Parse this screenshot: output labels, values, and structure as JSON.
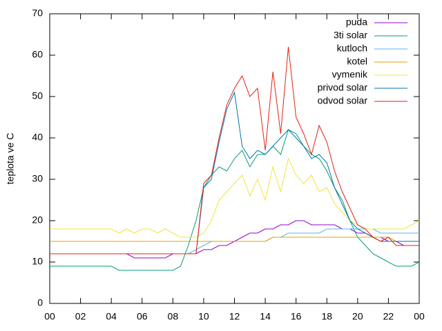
{
  "chart_data": {
    "type": "line",
    "ylabel": "teplota ve C",
    "x": [
      0,
      0.5,
      1,
      1.5,
      2,
      2.5,
      3,
      3.5,
      4,
      4.5,
      5,
      5.5,
      6,
      6.5,
      7,
      7.5,
      8,
      8.5,
      9,
      9.5,
      10,
      10.5,
      11,
      11.5,
      12,
      12.5,
      13,
      13.5,
      14,
      14.5,
      15,
      15.5,
      16,
      16.5,
      17,
      17.5,
      18,
      18.5,
      19,
      19.5,
      20,
      20.5,
      21,
      21.5,
      22,
      22.5,
      23,
      23.5,
      24
    ],
    "xlim": [
      0,
      24
    ],
    "xticks": [
      {
        "value": 0,
        "label": "00"
      },
      {
        "value": 2,
        "label": "02"
      },
      {
        "value": 4,
        "label": "04"
      },
      {
        "value": 6,
        "label": "06"
      },
      {
        "value": 8,
        "label": "08"
      },
      10,
      12,
      14,
      16,
      18,
      20,
      22,
      {
        "value": 24,
        "label": "00"
      }
    ],
    "ylim": [
      0,
      70
    ],
    "yticks": [
      0,
      10,
      20,
      30,
      40,
      50,
      60,
      70
    ],
    "legend": "upper right",
    "series": [
      {
        "name": "puda",
        "color": "#9400d3",
        "values": [
          12,
          12,
          12,
          12,
          12,
          12,
          12,
          12,
          12,
          12,
          12,
          11,
          11,
          11,
          11,
          11,
          12,
          12,
          12,
          12,
          13,
          13,
          14,
          14,
          15,
          16,
          17,
          17,
          18,
          18,
          19,
          19,
          20,
          20,
          19,
          19,
          19,
          19,
          18,
          18,
          17,
          17,
          16,
          16,
          15,
          15,
          14,
          14,
          14
        ]
      },
      {
        "name": "3ti solar",
        "color": "#009e73",
        "values": [
          9,
          9,
          9,
          9,
          9,
          9,
          9,
          9,
          9,
          8,
          8,
          8,
          8,
          8,
          8,
          8,
          8,
          9,
          14,
          20,
          28,
          31,
          33,
          32,
          35,
          37,
          33,
          36,
          36,
          38,
          36,
          42,
          41,
          38,
          36,
          35,
          32,
          28,
          25,
          20,
          16,
          14,
          12,
          11,
          10,
          9,
          9,
          9,
          10
        ]
      },
      {
        "name": "kutloch",
        "color": "#56b4e9",
        "values": [
          12,
          12,
          12,
          12,
          12,
          12,
          12,
          12,
          12,
          12,
          12,
          12,
          12,
          12,
          12,
          12,
          12,
          12,
          12,
          13,
          14,
          15,
          15,
          15,
          15,
          15,
          15,
          15,
          15,
          16,
          16,
          17,
          17,
          17,
          17,
          17,
          18,
          18,
          18,
          18,
          18,
          18,
          18,
          17,
          17,
          17,
          17,
          17,
          17
        ]
      },
      {
        "name": "kotel",
        "color": "#e69f00",
        "values": [
          15,
          15,
          15,
          15,
          15,
          15,
          15,
          15,
          15,
          15,
          15,
          15,
          15,
          15,
          15,
          15,
          15,
          15,
          15,
          15,
          15,
          15,
          15,
          15,
          15,
          15,
          15,
          15,
          15,
          16,
          16,
          16,
          16,
          16,
          16,
          16,
          16,
          16,
          16,
          16,
          16,
          16,
          16,
          16,
          16,
          15,
          15,
          15,
          15
        ]
      },
      {
        "name": "vymenik",
        "color": "#f0e442",
        "values": [
          18,
          18,
          18,
          18,
          18,
          18,
          18,
          18,
          18,
          17,
          18,
          17,
          18,
          18,
          17,
          18,
          17,
          16,
          16,
          16,
          17,
          20,
          25,
          27,
          29,
          31,
          26,
          30,
          25,
          33,
          27,
          35,
          31,
          29,
          31,
          27,
          28,
          24,
          22,
          20,
          19,
          18,
          18,
          18,
          18,
          18,
          18,
          19,
          20
        ]
      },
      {
        "name": "privod solar",
        "color": "#0072b2",
        "values": [
          12,
          12,
          12,
          12,
          12,
          12,
          12,
          12,
          12,
          12,
          12,
          12,
          12,
          12,
          12,
          12,
          12,
          12,
          12,
          12,
          28,
          30,
          39,
          47,
          51,
          38,
          35,
          37,
          36,
          38,
          40,
          42,
          40,
          38,
          35,
          36,
          34,
          28,
          24,
          20,
          18,
          17,
          16,
          15,
          15,
          15,
          15,
          15,
          15
        ]
      },
      {
        "name": "odvod solar",
        "color": "#e51e10",
        "values": [
          12,
          12,
          12,
          12,
          12,
          12,
          12,
          12,
          12,
          12,
          12,
          12,
          12,
          12,
          12,
          12,
          12,
          12,
          12,
          12,
          29,
          31,
          40,
          48,
          52,
          55,
          50,
          52,
          37,
          56,
          41,
          62,
          45,
          41,
          36,
          43,
          39,
          32,
          27,
          23,
          19,
          18,
          16,
          15,
          16,
          14,
          14,
          14,
          14
        ]
      }
    ]
  }
}
